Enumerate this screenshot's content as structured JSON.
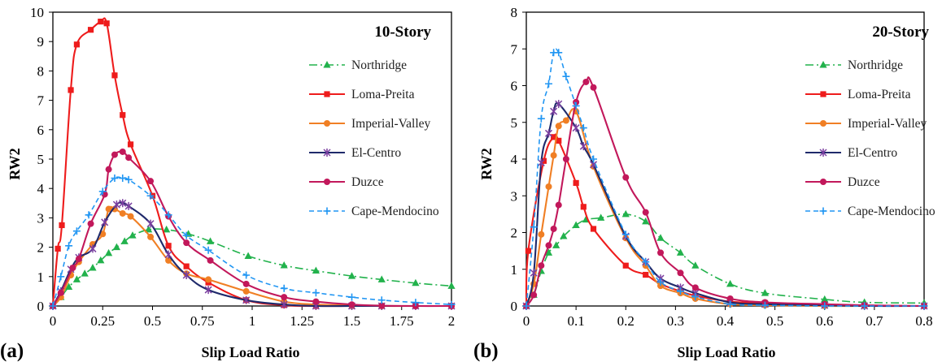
{
  "chart_data": [
    {
      "panel": "(a)",
      "type": "line",
      "title": "10-Story",
      "xlabel": "Slip Load Ratio",
      "ylabel": "RW2",
      "xlim": [
        0,
        2
      ],
      "ylim": [
        0,
        10
      ],
      "xticks": [
        "0",
        "0.25",
        "0.5",
        "0.75",
        "1",
        "1.25",
        "1.5",
        "1.75",
        "2"
      ],
      "yticks": [
        "0",
        "1",
        "2",
        "3",
        "4",
        "5",
        "6",
        "7",
        "8",
        "9",
        "10"
      ],
      "legend_position": "right",
      "series": [
        {
          "name": "Northridge",
          "color": "#22B24C",
          "dash": "10,4,2,4",
          "marker": "triangle",
          "x": [
            0,
            0.04,
            0.08,
            0.12,
            0.16,
            0.2,
            0.24,
            0.28,
            0.32,
            0.36,
            0.4,
            0.48,
            0.57,
            0.68,
            0.79,
            0.98,
            1.16,
            1.32,
            1.5,
            1.65,
            1.82,
            2
          ],
          "y": [
            0,
            0.3,
            0.65,
            0.9,
            1.1,
            1.3,
            1.55,
            1.8,
            2.0,
            2.2,
            2.4,
            2.6,
            2.6,
            2.45,
            2.2,
            1.7,
            1.38,
            1.2,
            1.02,
            0.9,
            0.78,
            0.68
          ]
        },
        {
          "name": "Loma-Preita",
          "color": "#EE1C1C",
          "dash": "",
          "marker": "square",
          "x": [
            0,
            0.025,
            0.045,
            0.09,
            0.12,
            0.19,
            0.24,
            0.27,
            0.31,
            0.35,
            0.39,
            0.5,
            0.58,
            0.67,
            0.78,
            0.97,
            1.16,
            1.32,
            1.5,
            1.65,
            1.82,
            2
          ],
          "y": [
            0,
            1.95,
            2.75,
            7.35,
            8.9,
            9.4,
            9.68,
            9.62,
            7.85,
            6.5,
            5.5,
            3.75,
            2.05,
            1.35,
            0.8,
            0.2,
            0.03,
            0,
            0,
            0,
            0,
            0
          ],
          "smooth_note": "peak"
        },
        {
          "name": "Imperial-Valley",
          "color": "#F07F24",
          "dash": "",
          "marker": "circle",
          "x": [
            0,
            0.04,
            0.09,
            0.13,
            0.2,
            0.25,
            0.28,
            0.31,
            0.35,
            0.39,
            0.49,
            0.58,
            0.67,
            0.78,
            0.97,
            1.16,
            1.32,
            1.5,
            1.65,
            1.82,
            2
          ],
          "y": [
            0,
            0.3,
            1.05,
            1.5,
            2.1,
            2.45,
            3.3,
            3.3,
            3.15,
            3.05,
            2.35,
            1.55,
            1.1,
            0.9,
            0.5,
            0.15,
            0.05,
            0.02,
            0,
            0,
            0
          ]
        },
        {
          "name": "El-Centro",
          "color": "#1F2A6B",
          "dash": "",
          "marker": "star",
          "x": [
            0,
            0.04,
            0.09,
            0.13,
            0.2,
            0.26,
            0.32,
            0.35,
            0.38,
            0.49,
            0.58,
            0.67,
            0.78,
            0.97,
            1.16,
            1.32,
            1.5,
            1.65,
            1.82,
            2
          ],
          "y": [
            0,
            0.5,
            1.25,
            1.65,
            1.95,
            2.85,
            3.45,
            3.5,
            3.4,
            2.8,
            1.75,
            1.05,
            0.55,
            0.2,
            0.05,
            0,
            0,
            0,
            0,
            0
          ]
        },
        {
          "name": "Duzce",
          "color": "#C2185B",
          "dash": "",
          "marker": "circle",
          "x": [
            0,
            0.04,
            0.1,
            0.13,
            0.19,
            0.26,
            0.28,
            0.31,
            0.35,
            0.38,
            0.49,
            0.58,
            0.67,
            0.79,
            0.97,
            1.16,
            1.32,
            1.5,
            1.65,
            1.82,
            2
          ],
          "y": [
            0,
            0.45,
            1.3,
            1.6,
            2.8,
            3.8,
            4.65,
            5.15,
            5.25,
            5.05,
            4.25,
            3.05,
            2.15,
            1.55,
            0.75,
            0.3,
            0.15,
            0.05,
            0.01,
            0,
            0
          ]
        },
        {
          "name": "Cape-Mendocino",
          "color": "#2196F3",
          "dash": "6,4",
          "marker": "plus",
          "x": [
            0,
            0.04,
            0.08,
            0.12,
            0.18,
            0.25,
            0.31,
            0.35,
            0.38,
            0.49,
            0.58,
            0.67,
            0.78,
            0.97,
            1.16,
            1.32,
            1.5,
            1.65,
            1.82,
            2
          ],
          "y": [
            0,
            1.0,
            2.05,
            2.55,
            3.1,
            3.9,
            4.35,
            4.35,
            4.3,
            3.75,
            3.1,
            2.4,
            1.9,
            1.05,
            0.6,
            0.45,
            0.3,
            0.2,
            0.12,
            0.05
          ]
        }
      ]
    },
    {
      "panel": "(b)",
      "type": "line",
      "title": "20-Story",
      "xlabel": "Slip Load Ratio",
      "ylabel": "RW2",
      "xlim": [
        0,
        0.8
      ],
      "ylim": [
        0,
        8
      ],
      "xticks": [
        "0",
        "0.1",
        "0.2",
        "0.3",
        "0.4",
        "0.5",
        "0.6",
        "0.7",
        "0.8"
      ],
      "yticks": [
        "0",
        "1",
        "2",
        "3",
        "4",
        "5",
        "6",
        "7",
        "8"
      ],
      "legend_position": "right",
      "series": [
        {
          "name": "Northridge",
          "color": "#22B24C",
          "dash": "10,4,2,4",
          "marker": "triangle",
          "x": [
            0,
            0.015,
            0.03,
            0.045,
            0.06,
            0.075,
            0.1,
            0.12,
            0.15,
            0.2,
            0.24,
            0.27,
            0.31,
            0.34,
            0.41,
            0.48,
            0.6,
            0.68,
            0.8
          ],
          "y": [
            0,
            0.3,
            0.95,
            1.45,
            1.65,
            1.9,
            2.2,
            2.35,
            2.4,
            2.5,
            2.3,
            1.85,
            1.45,
            1.1,
            0.6,
            0.35,
            0.18,
            0.1,
            0.08
          ]
        },
        {
          "name": "Loma-Preita",
          "color": "#EE1C1C",
          "dash": "",
          "marker": "square",
          "x": [
            0,
            0.004,
            0.035,
            0.055,
            0.065,
            0.1,
            0.115,
            0.135,
            0.2,
            0.24,
            0.27,
            0.31,
            0.34,
            0.41,
            0.48,
            0.6,
            0.68,
            0.8
          ],
          "y": [
            0,
            1.5,
            3.95,
            4.6,
            4.5,
            3.35,
            2.7,
            2.1,
            1.1,
            0.85,
            0.6,
            0.4,
            0.28,
            0.12,
            0.08,
            0.03,
            0.01,
            0
          ]
        },
        {
          "name": "Imperial-Valley",
          "color": "#F07F24",
          "dash": "",
          "marker": "circle",
          "x": [
            0,
            0.015,
            0.03,
            0.045,
            0.055,
            0.065,
            0.08,
            0.1,
            0.135,
            0.2,
            0.24,
            0.27,
            0.31,
            0.34,
            0.41,
            0.48,
            0.6,
            0.68,
            0.8
          ],
          "y": [
            0,
            0.6,
            1.95,
            3.25,
            4.1,
            4.9,
            5.05,
            5.3,
            3.8,
            1.85,
            1.1,
            0.55,
            0.35,
            0.2,
            0.05,
            0.02,
            0,
            0,
            0
          ]
        },
        {
          "name": "El-Centro",
          "color": "#1F2A6B",
          "dash": "",
          "marker": "star",
          "x": [
            0,
            0.015,
            0.03,
            0.045,
            0.055,
            0.065,
            0.1,
            0.115,
            0.135,
            0.2,
            0.24,
            0.27,
            0.31,
            0.34,
            0.41,
            0.48,
            0.6,
            0.68,
            0.8
          ],
          "y": [
            0,
            0.9,
            3.9,
            4.7,
            5.3,
            5.5,
            4.85,
            4.35,
            3.85,
            1.9,
            1.2,
            0.75,
            0.5,
            0.35,
            0.1,
            0.05,
            0.02,
            0,
            0
          ]
        },
        {
          "name": "Duzce",
          "color": "#C2185B",
          "dash": "",
          "marker": "circle",
          "x": [
            0,
            0.015,
            0.03,
            0.045,
            0.055,
            0.065,
            0.08,
            0.1,
            0.12,
            0.135,
            0.2,
            0.24,
            0.27,
            0.31,
            0.34,
            0.41,
            0.48,
            0.6,
            0.68,
            0.8
          ],
          "y": [
            0,
            0.3,
            1.1,
            1.65,
            2.1,
            2.75,
            4.0,
            5.55,
            6.1,
            5.95,
            3.5,
            2.55,
            1.45,
            0.9,
            0.5,
            0.2,
            0.1,
            0.05,
            0.02,
            0
          ]
        },
        {
          "name": "Cape-Mendocino",
          "color": "#2196F3",
          "dash": "6,4",
          "marker": "plus",
          "x": [
            0,
            0.015,
            0.03,
            0.045,
            0.055,
            0.065,
            0.08,
            0.1,
            0.115,
            0.135,
            0.2,
            0.24,
            0.27,
            0.31,
            0.34,
            0.41,
            0.48,
            0.6,
            0.68,
            0.8
          ],
          "y": [
            0,
            2.15,
            5.1,
            6.05,
            6.9,
            6.9,
            6.25,
            5.45,
            4.85,
            4.0,
            1.95,
            1.2,
            0.65,
            0.4,
            0.25,
            0.05,
            0.02,
            0,
            0,
            0
          ]
        }
      ]
    }
  ]
}
